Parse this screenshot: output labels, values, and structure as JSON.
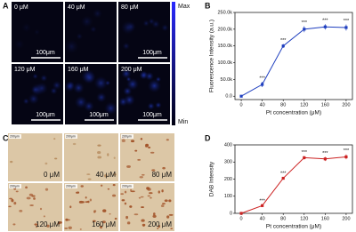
{
  "panels": {
    "a": {
      "label": "A",
      "colorbar": {
        "max": "Max",
        "min": "Min"
      },
      "images": [
        {
          "label": "0 μM",
          "scale": "100μm"
        },
        {
          "label": "40 μM"
        },
        {
          "label": "80 μM",
          "scale": "100μm"
        },
        {
          "label": "120 μM",
          "scale": "100μm"
        },
        {
          "label": "160 μM",
          "scale": "100μm"
        },
        {
          "label": "200 μM",
          "scale": "100μm"
        }
      ]
    },
    "b": {
      "label": "B"
    },
    "c": {
      "label": "C",
      "images": [
        {
          "label": "0 μM",
          "scale": "200μm"
        },
        {
          "label": "40 μM",
          "scale": "200μm"
        },
        {
          "label": "80 μM",
          "scale": "200μm"
        },
        {
          "label": "120 μM",
          "scale": "200μm"
        },
        {
          "label": "160 μM",
          "scale": "200μm"
        },
        {
          "label": "200 μM",
          "scale": "200μm"
        }
      ]
    },
    "d": {
      "label": "D"
    }
  },
  "chart_data": [
    {
      "type": "line",
      "xlabel": "Pt concentration (μM)",
      "ylabel": "Fluorescence Intensity (a.u.)",
      "color": "#1f3fbf",
      "x": [
        0,
        40,
        80,
        120,
        160,
        200
      ],
      "values": [
        0,
        35000,
        150000,
        200000,
        207000,
        205000
      ],
      "errors": [
        2000,
        8000,
        6000,
        9000,
        8000,
        9000
      ],
      "value_annotations": [
        null,
        "***",
        "***",
        "***",
        "***",
        "***"
      ],
      "xlim": [
        -12,
        212
      ],
      "xticks": [
        0,
        40,
        80,
        120,
        160,
        200
      ],
      "ylim": [
        -10000,
        250000
      ],
      "yticks": [
        {
          "value": 0,
          "label": "0.0"
        },
        {
          "value": 50000,
          "label": "50.0k"
        },
        {
          "value": 100000,
          "label": "100.0k"
        },
        {
          "value": 150000,
          "label": "150.0k"
        },
        {
          "value": 200000,
          "label": "200.0k"
        },
        {
          "value": 250000,
          "label": "250.0k"
        }
      ]
    },
    {
      "type": "line",
      "xlabel": "Pt concentration (μM)",
      "ylabel": "DAB Intensity",
      "color": "#cc2222",
      "x": [
        0,
        40,
        80,
        120,
        160,
        200
      ],
      "values": [
        0,
        45,
        205,
        325,
        318,
        330
      ],
      "errors": [
        3,
        8,
        8,
        10,
        12,
        14
      ],
      "value_annotations": [
        null,
        "***",
        "***",
        "***",
        "***",
        "***"
      ],
      "xlim": [
        -12,
        212
      ],
      "xticks": [
        0,
        40,
        80,
        120,
        160,
        200
      ],
      "ylim": [
        0,
        400
      ],
      "yticks": [
        0,
        100,
        200,
        300,
        400
      ]
    }
  ]
}
